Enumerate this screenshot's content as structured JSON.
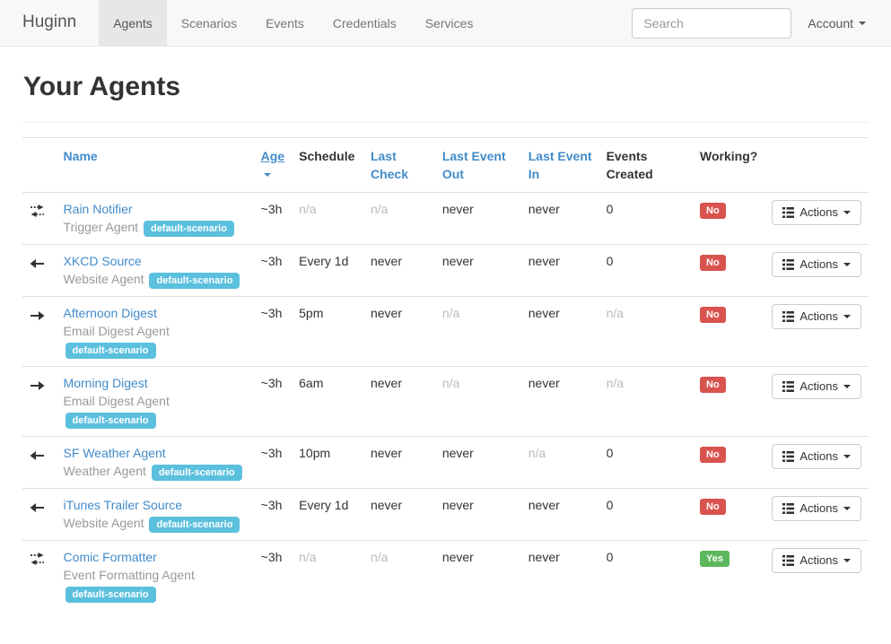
{
  "navbar": {
    "brand": "Huginn",
    "items": [
      {
        "label": "Agents",
        "active": true
      },
      {
        "label": "Scenarios",
        "active": false
      },
      {
        "label": "Events",
        "active": false
      },
      {
        "label": "Credentials",
        "active": false
      },
      {
        "label": "Services",
        "active": false
      }
    ],
    "search": {
      "placeholder": "Search"
    },
    "account": {
      "label": "Account"
    }
  },
  "page": {
    "title": "Your Agents"
  },
  "table": {
    "headers": {
      "name": "Name",
      "age": "Age",
      "schedule": "Schedule",
      "last_check": "Last Check",
      "last_event_out": "Last Event Out",
      "last_event_in": "Last Event In",
      "events_created": "Events Created",
      "working": "Working?"
    },
    "sorted_column": "age",
    "sort_direction": "desc",
    "actions_label": "Actions",
    "rows": [
      {
        "icon": "exchange",
        "name": "Rain Notifier",
        "type": "Trigger Agent",
        "scenario": "default-scenario",
        "age": "~3h",
        "schedule": "n/a",
        "last_check": "n/a",
        "last_event_out": "never",
        "last_event_in": "never",
        "events_created": "0",
        "working": "No"
      },
      {
        "icon": "arrow-left",
        "name": "XKCD Source",
        "type": "Website Agent",
        "scenario": "default-scenario",
        "age": "~3h",
        "schedule": "Every 1d",
        "last_check": "never",
        "last_event_out": "never",
        "last_event_in": "never",
        "events_created": "0",
        "working": "No"
      },
      {
        "icon": "arrow-right",
        "name": "Afternoon Digest",
        "type": "Email Digest Agent",
        "scenario": "default-scenario",
        "age": "~3h",
        "schedule": "5pm",
        "last_check": "never",
        "last_event_out": "n/a",
        "last_event_in": "never",
        "events_created": "n/a",
        "working": "No"
      },
      {
        "icon": "arrow-right",
        "name": "Morning Digest",
        "type": "Email Digest Agent",
        "scenario": "default-scenario",
        "age": "~3h",
        "schedule": "6am",
        "last_check": "never",
        "last_event_out": "n/a",
        "last_event_in": "never",
        "events_created": "n/a",
        "working": "No"
      },
      {
        "icon": "arrow-left",
        "name": "SF Weather Agent",
        "type": "Weather Agent",
        "scenario": "default-scenario",
        "age": "~3h",
        "schedule": "10pm",
        "last_check": "never",
        "last_event_out": "never",
        "last_event_in": "n/a",
        "events_created": "0",
        "working": "No"
      },
      {
        "icon": "arrow-left",
        "name": "iTunes Trailer Source",
        "type": "Website Agent",
        "scenario": "default-scenario",
        "age": "~3h",
        "schedule": "Every 1d",
        "last_check": "never",
        "last_event_out": "never",
        "last_event_in": "never",
        "events_created": "0",
        "working": "No"
      },
      {
        "icon": "exchange",
        "name": "Comic Formatter",
        "type": "Event Formatting Agent",
        "scenario": "default-scenario",
        "age": "~3h",
        "schedule": "n/a",
        "last_check": "n/a",
        "last_event_out": "never",
        "last_event_in": "never",
        "events_created": "0",
        "working": "Yes"
      }
    ]
  },
  "colors": {
    "link": "#428bca",
    "badge_info": "#5bc0de",
    "label_danger": "#d9534f",
    "label_success": "#5cb85c",
    "muted": "#bbbbbb",
    "navbar_bg": "#f8f8f8",
    "navbar_active_bg": "#e7e7e7"
  }
}
